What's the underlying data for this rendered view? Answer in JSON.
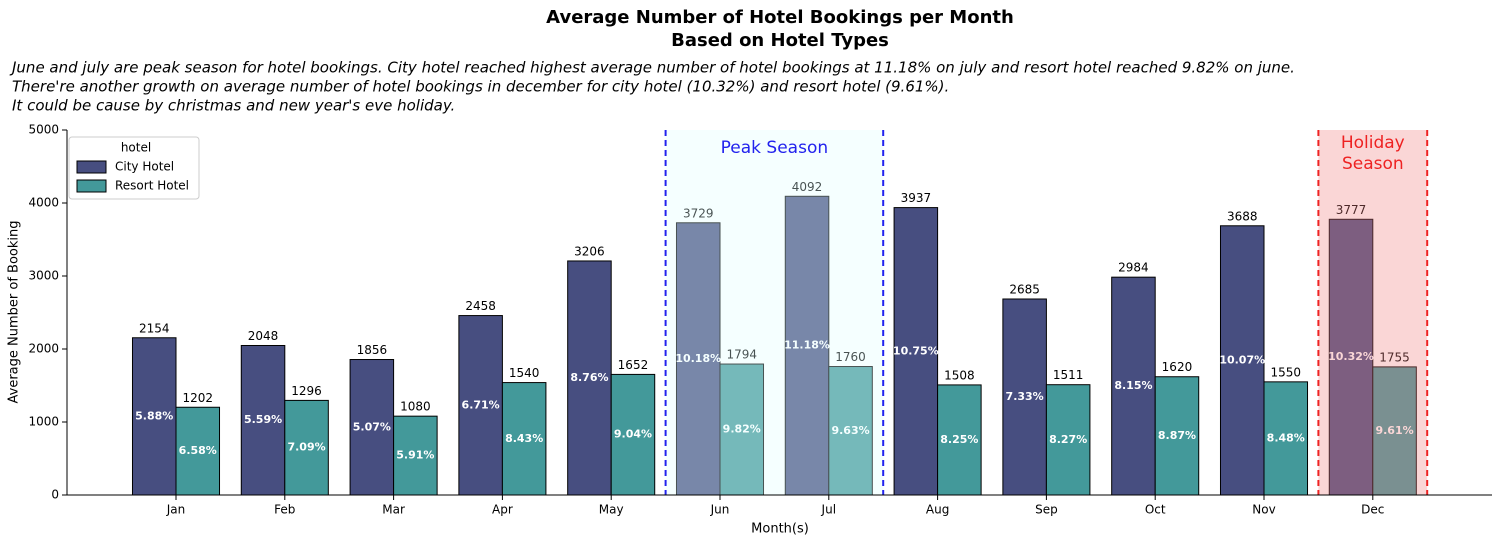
{
  "chart_data": {
    "type": "bar",
    "title": [
      "Average Number of Hotel Bookings per Month",
      "Based on Hotel Types"
    ],
    "subtitle": [
      "June and july are peak season for hotel bookings. City hotel reached highest average number of hotel bookings at 11.18% on july and resort hotel reached 9.82% on june.",
      "There're another growth on average number of hotel bookings in december for city hotel (10.32%) and resort hotel (9.61%).",
      "It could be cause by christmas and new year's eve holiday."
    ],
    "x_label": "Month(s)",
    "y_label": "Average Number of Booking",
    "categories": [
      "Jan",
      "Feb",
      "Mar",
      "Apr",
      "May",
      "Jun",
      "Jul",
      "Aug",
      "Sep",
      "Oct",
      "Nov",
      "Dec"
    ],
    "series": [
      {
        "name": "City Hotel",
        "color": "#474e80",
        "values": [
          2154,
          2048,
          1856,
          2458,
          3206,
          3729,
          4092,
          3937,
          2685,
          2984,
          3688,
          3777
        ],
        "share_labels": [
          "5.88%",
          "5.59%",
          "5.07%",
          "6.71%",
          "8.76%",
          "10.18%",
          "11.18%",
          "10.75%",
          "7.33%",
          "8.15%",
          "10.07%",
          "10.32%"
        ]
      },
      {
        "name": "Resort Hotel",
        "color": "#43999a",
        "values": [
          1202,
          1296,
          1080,
          1540,
          1652,
          1794,
          1760,
          1508,
          1511,
          1620,
          1550,
          1755
        ],
        "share_labels": [
          "6.58%",
          "7.09%",
          "5.91%",
          "8.43%",
          "9.04%",
          "9.82%",
          "9.63%",
          "8.25%",
          "8.27%",
          "8.87%",
          "8.48%",
          "9.61%"
        ]
      }
    ],
    "ylim": [
      0,
      5000
    ],
    "yticks": [
      0,
      1000,
      2000,
      3000,
      4000,
      5000
    ],
    "legend_title": "hotel",
    "legend_position": "upper left",
    "spans": [
      {
        "label": [
          "Peak Season"
        ],
        "first": "Jun",
        "last": "Jul",
        "color": "#2222ee",
        "fill": "#e0ffff"
      },
      {
        "label": [
          "Holiday",
          "Season"
        ],
        "first": "Dec",
        "last": "Dec",
        "color": "#ee2222",
        "fill": "#f08080"
      }
    ]
  }
}
